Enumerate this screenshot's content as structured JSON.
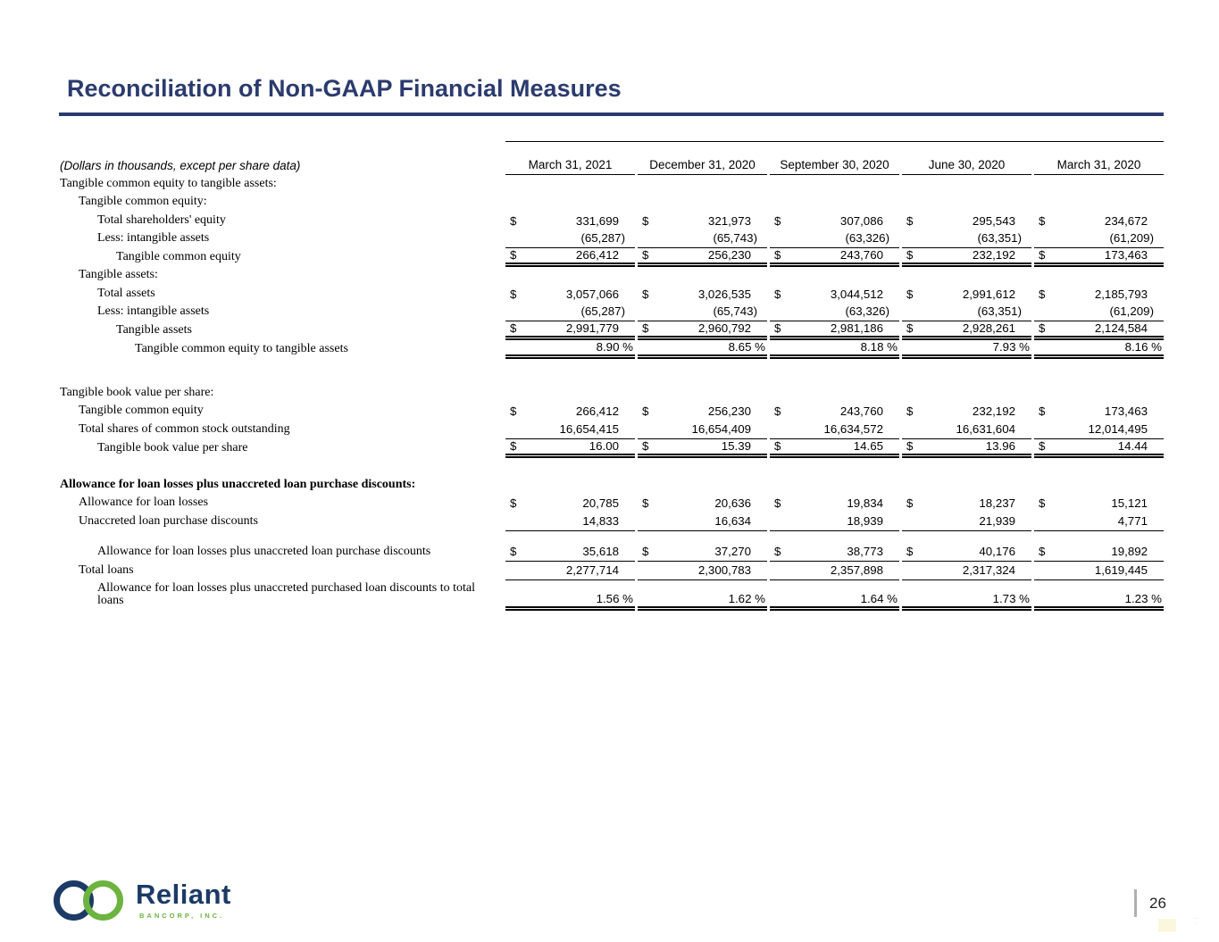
{
  "header": {
    "title": "Reconciliation of Non-GAAP Financial Measures"
  },
  "table": {
    "note": "(Dollars in thousands, except per share data)",
    "columns": [
      "March 31, 2021",
      "December 31, 2020",
      "September 30, 2020",
      "June 30, 2020",
      "March 31, 2020"
    ],
    "rows": [
      {
        "label": "Tangible common equity to tangible assets:",
        "indent": 0
      },
      {
        "label": "Tangible common equity:",
        "indent": 1
      },
      {
        "label": "Total shareholders' equity",
        "indent": 2,
        "dollar": true,
        "values": [
          "331,699",
          "321,973",
          "307,086",
          "295,543",
          "234,672"
        ]
      },
      {
        "label": "Less: intangible assets",
        "indent": 2,
        "neg": true,
        "underline": "single",
        "values": [
          "(65,287)",
          "(65,743)",
          "(63,326)",
          "(63,351)",
          "(61,209)"
        ]
      },
      {
        "label": "Tangible common equity",
        "indent": 3,
        "dollar": true,
        "underline": "double",
        "values": [
          "266,412",
          "256,230",
          "243,760",
          "232,192",
          "173,463"
        ]
      },
      {
        "label": "Tangible assets:",
        "indent": 1
      },
      {
        "label": "Total assets",
        "indent": 2,
        "dollar": true,
        "values": [
          "3,057,066",
          "3,026,535",
          "3,044,512",
          "2,991,612",
          "2,185,793"
        ]
      },
      {
        "label": "Less:  intangible assets",
        "indent": 2,
        "neg": true,
        "underline": "single",
        "values": [
          "(65,287)",
          "(65,743)",
          "(63,326)",
          "(63,351)",
          "(61,209)"
        ]
      },
      {
        "label": "Tangible assets",
        "indent": 3,
        "dollar": true,
        "underline": "double",
        "values": [
          "2,991,779",
          "2,960,792",
          "2,981,186",
          "2,928,261",
          "2,124,584"
        ]
      },
      {
        "label": "Tangible common equity to tangible assets",
        "indent": 4,
        "pct": true,
        "underline": "double",
        "values": [
          "8.90",
          "8.65",
          "8.18",
          "7.93",
          "8.16"
        ]
      },
      {
        "type": "spacer",
        "h": 29
      },
      {
        "label": "Tangible book value per share:",
        "indent": 0
      },
      {
        "label": "Tangible common equity",
        "indent": 1,
        "dollar": true,
        "values": [
          "266,412",
          "256,230",
          "243,760",
          "232,192",
          "173,463"
        ]
      },
      {
        "label": "Total shares of common stock outstanding",
        "indent": 1,
        "underline": "single",
        "values": [
          "16,654,415",
          "16,654,409",
          "16,634,572",
          "16,631,604",
          "12,014,495"
        ]
      },
      {
        "label": "Tangible book value per share",
        "indent": 2,
        "dollar": true,
        "underline": "double",
        "values": [
          "16.00",
          "15.39",
          "14.65",
          "13.96",
          "14.44"
        ]
      },
      {
        "type": "spacer",
        "h": 21
      },
      {
        "label": "Allowance for loan losses plus unaccreted loan purchase discounts:",
        "indent": 0,
        "bold": true
      },
      {
        "label": "Allowance for loan losses",
        "indent": 1,
        "dollar": true,
        "values": [
          "20,785",
          "20,636",
          "19,834",
          "18,237",
          "15,121"
        ]
      },
      {
        "label": "Unaccreted loan purchase discounts",
        "indent": 1,
        "underline": "single",
        "values": [
          "14,833",
          "16,634",
          "18,939",
          "21,939",
          "4,771"
        ]
      },
      {
        "type": "spacer",
        "h": 14
      },
      {
        "label": "Allowance for loan losses plus unaccreted loan purchase discounts",
        "indent": 2,
        "dollar": true,
        "underline": "single",
        "values": [
          "35,618",
          "37,270",
          "38,773",
          "40,176",
          "19,892"
        ]
      },
      {
        "label": "Total loans",
        "indent": 1,
        "underline": "single",
        "values": [
          "2,277,714",
          "2,300,783",
          "2,357,898",
          "2,317,324",
          "1,619,445"
        ]
      },
      {
        "label": "Allowance for loan losses plus unaccreted purchased loan discounts to total loans",
        "indent": 2,
        "pct": true,
        "underline": "double",
        "twoline": true,
        "values": [
          "1.56",
          "1.62",
          "1.64",
          "1.73",
          "1.23"
        ]
      }
    ]
  },
  "footer": {
    "brand": "Reliant",
    "brand_sub": "BANCORP, INC.",
    "page_number": "26"
  },
  "colors": {
    "title_navy": "#2b3b6e",
    "rule_navy": "#2b3b6e",
    "table_line": "#000000",
    "logo_navy": "#1c3a66",
    "logo_green": "#6cb33f",
    "page_bar_gray": "#b0b0b0",
    "page_number_color": "#222222"
  }
}
